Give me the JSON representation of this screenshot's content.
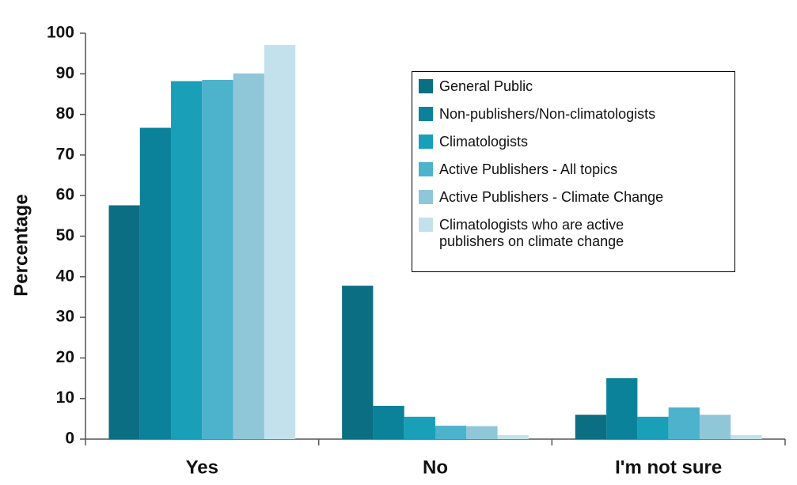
{
  "chart_data": {
    "type": "bar",
    "ylabel": "Percentage",
    "categories": [
      "Yes",
      "No",
      "I'm not sure"
    ],
    "series": [
      {
        "name": "General Public",
        "color": "#0c6e82",
        "values": [
          57.6,
          37.8,
          6
        ]
      },
      {
        "name": "Non-publishers/Non-climatologists",
        "color": "#0b8299",
        "values": [
          76.7,
          8.2,
          15
        ]
      },
      {
        "name": "Climatologists",
        "color": "#199fb8",
        "values": [
          88.2,
          5.5,
          5.5
        ]
      },
      {
        "name": "Active Publishers - All topics",
        "color": "#4db2cc",
        "values": [
          88.5,
          3.3,
          7.8
        ]
      },
      {
        "name": "Active Publishers - Climate Change",
        "color": "#8fc7d9",
        "values": [
          90.1,
          3.2,
          6
        ]
      },
      {
        "name": "Climatologists who are active publishers on climate change",
        "color": "#c3e1ec",
        "values": [
          97.1,
          1,
          1
        ]
      }
    ],
    "ylim": [
      0,
      100
    ],
    "yticks": [
      0,
      10,
      20,
      30,
      40,
      50,
      60,
      70,
      80,
      90,
      100
    ],
    "legend": "upper right"
  }
}
